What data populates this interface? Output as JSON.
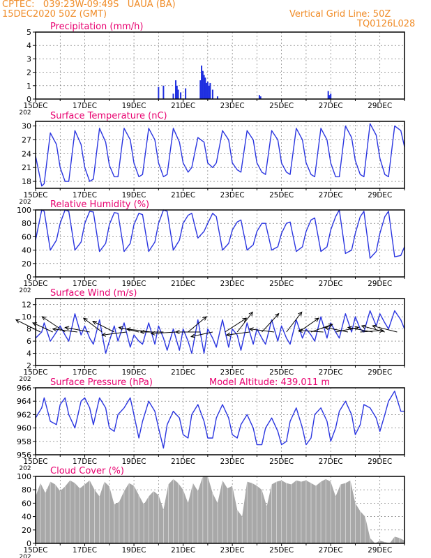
{
  "header": {
    "line1": "CPTEC:   039:23W-09:49S   UAUA (BA)",
    "line2": "15DEC2020 50Z (GMT)",
    "grid_note": "Vertical Grid Line: 50Z",
    "code": "TQ0126L028"
  },
  "x_axis": {
    "start_day": 15,
    "end_day": 30,
    "tick_labels": [
      "15DEC",
      "17DEC",
      "19DEC",
      "21DEC",
      "23DEC",
      "25DEC",
      "27DEC",
      "29DEC"
    ],
    "tick_days": [
      15,
      17,
      19,
      21,
      23,
      25,
      27,
      29
    ],
    "year_fragment": "202"
  },
  "colors": {
    "header": "#f08c28",
    "title": "#e8006f",
    "line": "#2a35e0",
    "bars": "#1f2fe0",
    "cloud": "#a8a8a8",
    "grid": "#666666"
  },
  "chart_data": [
    {
      "id": "precip",
      "type": "bar",
      "title": "Precipitation (mm/h)",
      "ylim": [
        0,
        5
      ],
      "yticks": [
        0,
        1,
        2,
        3,
        4,
        5
      ],
      "x": [
        20.0,
        20.2,
        20.6,
        20.7,
        20.75,
        20.8,
        20.9,
        21.1,
        21.7,
        21.75,
        21.8,
        21.85,
        21.9,
        21.95,
        22.0,
        22.05,
        22.1,
        22.2,
        22.4,
        24.1,
        24.15,
        26.9,
        26.95,
        27.0
      ],
      "values": [
        0.9,
        1.0,
        0.4,
        1.4,
        1.0,
        0.7,
        0.5,
        0.8,
        1.4,
        2.5,
        2.1,
        1.8,
        1.6,
        1.2,
        1.3,
        1.0,
        1.2,
        0.7,
        0.2,
        0.3,
        0.2,
        0.6,
        0.3,
        0.4
      ]
    },
    {
      "id": "temp",
      "type": "line",
      "title": "Surface Temperature (nC)",
      "ylim": [
        16.5,
        31
      ],
      "yticks": [
        18,
        21,
        24,
        27,
        30
      ],
      "x": [
        15.0,
        15.25,
        15.35,
        15.6,
        15.85,
        16.0,
        16.2,
        16.35,
        16.6,
        16.85,
        17.0,
        17.2,
        17.35,
        17.6,
        17.85,
        18.0,
        18.2,
        18.35,
        18.6,
        18.85,
        19.0,
        19.2,
        19.35,
        19.6,
        19.85,
        20.0,
        20.2,
        20.35,
        20.6,
        20.85,
        21.0,
        21.2,
        21.35,
        21.6,
        21.85,
        22.0,
        22.2,
        22.35,
        22.6,
        22.85,
        23.0,
        23.2,
        23.35,
        23.6,
        23.85,
        24.0,
        24.2,
        24.35,
        24.6,
        24.85,
        25.0,
        25.2,
        25.35,
        25.6,
        25.85,
        26.0,
        26.2,
        26.35,
        26.6,
        26.85,
        27.0,
        27.2,
        27.35,
        27.6,
        27.85,
        28.0,
        28.2,
        28.35,
        28.6,
        28.85,
        29.0,
        29.2,
        29.35,
        29.6,
        29.85,
        30.0
      ],
      "values": [
        23.5,
        17.0,
        17.5,
        28.5,
        26.0,
        21.0,
        18.0,
        18.0,
        29.0,
        26.0,
        21.0,
        18.0,
        18.5,
        29.5,
        26.5,
        21.5,
        19.0,
        19.0,
        29.5,
        27.0,
        22.0,
        19.0,
        19.5,
        29.5,
        27.0,
        22.0,
        19.0,
        19.5,
        29.5,
        26.5,
        22.0,
        20.0,
        21.0,
        27.5,
        26.5,
        22.0,
        21.0,
        22.0,
        29.0,
        27.0,
        22.0,
        20.5,
        20.0,
        29.0,
        27.0,
        22.0,
        20.0,
        19.5,
        29.0,
        27.0,
        22.0,
        20.0,
        19.5,
        29.5,
        27.0,
        22.0,
        19.5,
        19.0,
        29.5,
        27.0,
        22.0,
        19.0,
        19.0,
        30.0,
        27.5,
        22.5,
        19.5,
        19.0,
        30.5,
        28.0,
        23.0,
        19.5,
        19.0,
        30.0,
        29.0,
        25.5
      ]
    },
    {
      "id": "rh",
      "type": "line",
      "title": "Relative Humidity (%)",
      "ylim": [
        0,
        100
      ],
      "yticks": [
        0,
        20,
        40,
        60,
        80,
        100
      ],
      "x": [
        15.0,
        15.25,
        15.35,
        15.6,
        15.85,
        16.0,
        16.2,
        16.35,
        16.6,
        16.85,
        17.0,
        17.2,
        17.35,
        17.6,
        17.85,
        18.0,
        18.2,
        18.35,
        18.6,
        18.85,
        19.0,
        19.2,
        19.35,
        19.6,
        19.85,
        20.0,
        20.2,
        20.35,
        20.6,
        20.85,
        21.0,
        21.2,
        21.35,
        21.6,
        21.85,
        22.0,
        22.2,
        22.35,
        22.6,
        22.85,
        23.0,
        23.2,
        23.35,
        23.6,
        23.85,
        24.0,
        24.2,
        24.35,
        24.6,
        24.85,
        25.0,
        25.2,
        25.35,
        25.6,
        25.85,
        26.0,
        26.2,
        26.35,
        26.6,
        26.85,
        27.0,
        27.2,
        27.35,
        27.6,
        27.85,
        28.0,
        28.2,
        28.35,
        28.6,
        28.85,
        29.0,
        29.2,
        29.35,
        29.6,
        29.85,
        30.0
      ],
      "values": [
        55,
        100,
        98,
        40,
        55,
        80,
        100,
        98,
        40,
        52,
        80,
        98,
        97,
        38,
        50,
        78,
        96,
        95,
        38,
        50,
        78,
        95,
        93,
        38,
        52,
        80,
        100,
        98,
        40,
        55,
        80,
        92,
        95,
        58,
        68,
        80,
        95,
        90,
        40,
        50,
        70,
        82,
        85,
        40,
        48,
        68,
        80,
        80,
        40,
        45,
        65,
        80,
        82,
        38,
        45,
        68,
        85,
        88,
        38,
        45,
        70,
        90,
        100,
        35,
        40,
        65,
        90,
        98,
        28,
        38,
        65,
        90,
        98,
        30,
        32,
        45
      ]
    },
    {
      "id": "wind",
      "type": "line",
      "title": "Surface Wind (m/s)",
      "ylim": [
        2,
        13
      ],
      "yticks": [
        2,
        4,
        6,
        8,
        10,
        12
      ],
      "x": [
        15.0,
        15.25,
        15.35,
        15.6,
        15.85,
        16.0,
        16.2,
        16.35,
        16.6,
        16.85,
        17.0,
        17.2,
        17.35,
        17.6,
        17.85,
        18.0,
        18.2,
        18.35,
        18.6,
        18.85,
        19.0,
        19.2,
        19.35,
        19.6,
        19.85,
        20.0,
        20.2,
        20.35,
        20.6,
        20.85,
        21.0,
        21.2,
        21.35,
        21.6,
        21.85,
        22.0,
        22.2,
        22.35,
        22.6,
        22.85,
        23.0,
        23.2,
        23.35,
        23.6,
        23.85,
        24.0,
        24.2,
        24.35,
        24.6,
        24.85,
        25.0,
        25.2,
        25.35,
        25.6,
        25.85,
        26.0,
        26.2,
        26.35,
        26.6,
        26.85,
        27.0,
        27.2,
        27.35,
        27.6,
        27.85,
        28.0,
        28.2,
        28.35,
        28.6,
        28.85,
        29.0,
        29.2,
        29.35,
        29.6,
        29.85,
        30.0
      ],
      "values": [
        6.5,
        7.5,
        9.0,
        6.0,
        7.5,
        8.5,
        7.0,
        6.0,
        10.5,
        7.0,
        8.5,
        6.5,
        5.5,
        9.5,
        4.0,
        6.0,
        8.5,
        6.0,
        9.0,
        5.0,
        7.0,
        6.0,
        5.5,
        9.0,
        5.5,
        8.5,
        6.5,
        4.5,
        8.0,
        4.5,
        8.0,
        6.0,
        4.0,
        9.5,
        4.0,
        8.0,
        6.5,
        5.0,
        9.5,
        5.0,
        8.0,
        7.0,
        4.5,
        9.0,
        5.5,
        8.0,
        6.5,
        5.5,
        9.5,
        6.0,
        8.5,
        6.5,
        5.5,
        9.5,
        6.5,
        8.0,
        7.0,
        6.0,
        10.0,
        6.5,
        9.0,
        7.5,
        6.5,
        10.5,
        7.5,
        10.0,
        8.0,
        7.5,
        11.0,
        8.5,
        10.5,
        9.0,
        8.0,
        11.0,
        9.5,
        8.0
      ],
      "arrows": [
        {
          "day": 15.2,
          "u": -1.6,
          "v": 0.8
        },
        {
          "day": 15.7,
          "u": -1.3,
          "v": 0.6
        },
        {
          "day": 16.2,
          "u": -1.5,
          "v": 1.0
        },
        {
          "day": 16.7,
          "u": -1.6,
          "v": 0.2
        },
        {
          "day": 17.2,
          "u": -1.6,
          "v": 0.3
        },
        {
          "day": 17.7,
          "u": -1.2,
          "v": 0.9
        },
        {
          "day": 18.2,
          "u": -1.4,
          "v": 0.7
        },
        {
          "day": 18.7,
          "u": -1.6,
          "v": -0.2
        },
        {
          "day": 19.2,
          "u": -1.3,
          "v": 0.3
        },
        {
          "day": 19.7,
          "u": -1.6,
          "v": 0.2
        },
        {
          "day": 20.2,
          "u": -1.5,
          "v": 0.0
        },
        {
          "day": 20.7,
          "u": -1.6,
          "v": -0.1
        },
        {
          "day": 21.2,
          "u": 1.2,
          "v": 1.0
        },
        {
          "day": 21.7,
          "u": -1.6,
          "v": 0.0
        },
        {
          "day": 22.2,
          "u": -1.4,
          "v": -0.3
        },
        {
          "day": 22.7,
          "u": 1.4,
          "v": 0.9
        },
        {
          "day": 23.2,
          "u": 1.0,
          "v": 1.3
        },
        {
          "day": 23.7,
          "u": -1.5,
          "v": -0.2
        },
        {
          "day": 24.2,
          "u": 1.1,
          "v": 1.2
        },
        {
          "day": 24.7,
          "u": -1.6,
          "v": 0.2
        },
        {
          "day": 25.2,
          "u": 1.0,
          "v": 1.3
        },
        {
          "day": 25.7,
          "u": 1.3,
          "v": 0.9
        },
        {
          "day": 26.2,
          "u": 1.4,
          "v": 0.5
        },
        {
          "day": 26.7,
          "u": -1.6,
          "v": 0.1
        },
        {
          "day": 27.2,
          "u": 1.5,
          "v": 0.3
        },
        {
          "day": 27.7,
          "u": -1.5,
          "v": 0.3
        },
        {
          "day": 28.2,
          "u": 1.5,
          "v": 0.1
        },
        {
          "day": 28.7,
          "u": -1.6,
          "v": 0.3
        },
        {
          "day": 29.2,
          "u": -1.5,
          "v": 0.4
        },
        {
          "day": 29.7,
          "u": -1.6,
          "v": 0.4
        }
      ]
    },
    {
      "id": "pressure",
      "type": "line",
      "title": "Surface Pressure (hPa)",
      "subtitle": "Model Altitude: 439.011 m",
      "ylim": [
        956,
        966
      ],
      "yticks": [
        956,
        958,
        960,
        962,
        964,
        966
      ],
      "x": [
        15.0,
        15.25,
        15.35,
        15.6,
        15.85,
        16.0,
        16.2,
        16.35,
        16.6,
        16.85,
        17.0,
        17.2,
        17.35,
        17.6,
        17.85,
        18.0,
        18.2,
        18.35,
        18.6,
        18.85,
        19.0,
        19.2,
        19.35,
        19.6,
        19.85,
        20.0,
        20.2,
        20.35,
        20.6,
        20.85,
        21.0,
        21.2,
        21.35,
        21.6,
        21.85,
        22.0,
        22.2,
        22.35,
        22.6,
        22.85,
        23.0,
        23.2,
        23.35,
        23.6,
        23.85,
        24.0,
        24.2,
        24.35,
        24.6,
        24.85,
        25.0,
        25.2,
        25.35,
        25.6,
        25.85,
        26.0,
        26.2,
        26.35,
        26.6,
        26.85,
        27.0,
        27.2,
        27.35,
        27.6,
        27.85,
        28.0,
        28.2,
        28.35,
        28.6,
        28.85,
        29.0,
        29.2,
        29.35,
        29.6,
        29.85,
        30.0
      ],
      "values": [
        961.5,
        963.0,
        964.5,
        961.0,
        960.5,
        963.5,
        964.5,
        962.0,
        960.0,
        964.0,
        964.5,
        963.0,
        960.5,
        964.5,
        963.0,
        960.0,
        959.5,
        962.0,
        963.0,
        964.5,
        962.0,
        958.5,
        961.0,
        964.0,
        962.5,
        960.0,
        957.0,
        960.5,
        962.5,
        961.5,
        959.0,
        958.5,
        962.0,
        963.5,
        961.0,
        958.5,
        958.5,
        961.5,
        963.5,
        961.5,
        959.0,
        958.5,
        960.5,
        962.0,
        960.0,
        957.5,
        957.5,
        960.0,
        961.5,
        959.5,
        957.5,
        958.0,
        961.0,
        963.0,
        960.0,
        957.5,
        958.5,
        962.0,
        963.0,
        961.0,
        958.0,
        960.0,
        962.5,
        964.0,
        962.0,
        959.0,
        960.5,
        963.5,
        963.0,
        961.5,
        959.5,
        962.0,
        964.0,
        965.5,
        962.5,
        962.5
      ]
    },
    {
      "id": "cloud",
      "type": "area",
      "title": "Cloud Cover (%)",
      "ylim": [
        0,
        100
      ],
      "yticks": [
        0,
        20,
        40,
        60,
        80,
        100
      ],
      "x": [
        15.0,
        15.2,
        15.4,
        15.6,
        15.8,
        16.0,
        16.2,
        16.4,
        16.6,
        16.8,
        17.0,
        17.2,
        17.4,
        17.6,
        17.8,
        18.0,
        18.2,
        18.4,
        18.6,
        18.8,
        19.0,
        19.2,
        19.4,
        19.6,
        19.8,
        20.0,
        20.2,
        20.4,
        20.6,
        20.8,
        21.0,
        21.2,
        21.4,
        21.6,
        21.8,
        22.0,
        22.2,
        22.4,
        22.6,
        22.8,
        23.0,
        23.2,
        23.4,
        23.6,
        23.8,
        24.0,
        24.2,
        24.4,
        24.6,
        24.8,
        25.0,
        25.2,
        25.4,
        25.6,
        25.8,
        26.0,
        26.2,
        26.4,
        26.6,
        26.8,
        27.0,
        27.2,
        27.4,
        27.6,
        27.8,
        28.0,
        28.2,
        28.4,
        28.6,
        28.8,
        29.0,
        29.2,
        29.4,
        29.6,
        29.8,
        30.0
      ],
      "values": [
        70,
        90,
        75,
        92,
        88,
        78,
        85,
        94,
        90,
        82,
        88,
        94,
        80,
        70,
        92,
        85,
        58,
        62,
        78,
        90,
        86,
        72,
        58,
        70,
        78,
        72,
        50,
        88,
        96,
        90,
        80,
        60,
        90,
        78,
        100,
        100,
        75,
        60,
        94,
        82,
        86,
        50,
        40,
        92,
        90,
        86,
        80,
        55,
        88,
        92,
        94,
        90,
        88,
        94,
        92,
        94,
        90,
        86,
        92,
        96,
        92,
        70,
        88,
        90,
        94,
        60,
        48,
        40,
        8,
        0,
        4,
        2,
        0,
        10,
        8,
        4
      ]
    }
  ]
}
